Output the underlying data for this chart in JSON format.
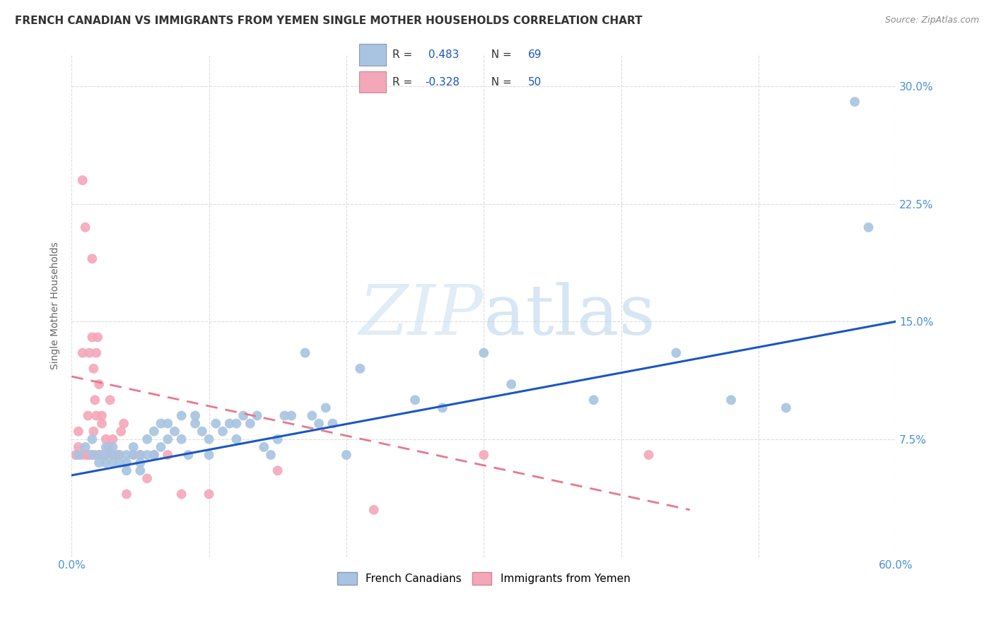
{
  "title": "FRENCH CANADIAN VS IMMIGRANTS FROM YEMEN SINGLE MOTHER HOUSEHOLDS CORRELATION CHART",
  "source": "Source: ZipAtlas.com",
  "ylabel": "Single Mother Households",
  "xlim": [
    0.0,
    0.6
  ],
  "ylim": [
    -0.02,
    0.32
  ],
  "plot_ylim": [
    0.0,
    0.32
  ],
  "xticks": [
    0.0,
    0.1,
    0.2,
    0.3,
    0.4,
    0.5,
    0.6
  ],
  "xticklabels": [
    "0.0%",
    "",
    "",
    "",
    "",
    "",
    "60.0%"
  ],
  "ytick_right_labels": [
    "",
    "7.5%",
    "15.0%",
    "22.5%",
    "30.0%"
  ],
  "ytick_right_values": [
    0.0,
    0.075,
    0.15,
    0.225,
    0.3
  ],
  "r_blue": 0.483,
  "n_blue": 69,
  "r_pink": -0.328,
  "n_pink": 50,
  "blue_color": "#a8c4e0",
  "pink_color": "#f4a7b9",
  "blue_line_color": "#1a56c4",
  "pink_line_color": "#e8788a",
  "watermark_color": "#ccddf0",
  "blue_scatter_x": [
    0.005,
    0.01,
    0.015,
    0.015,
    0.02,
    0.02,
    0.025,
    0.025,
    0.025,
    0.03,
    0.03,
    0.03,
    0.035,
    0.035,
    0.04,
    0.04,
    0.04,
    0.045,
    0.045,
    0.05,
    0.05,
    0.05,
    0.055,
    0.055,
    0.06,
    0.06,
    0.065,
    0.065,
    0.07,
    0.07,
    0.075,
    0.08,
    0.08,
    0.085,
    0.09,
    0.09,
    0.095,
    0.1,
    0.1,
    0.105,
    0.11,
    0.115,
    0.12,
    0.12,
    0.125,
    0.13,
    0.135,
    0.14,
    0.145,
    0.15,
    0.155,
    0.16,
    0.17,
    0.175,
    0.18,
    0.185,
    0.19,
    0.2,
    0.21,
    0.25,
    0.27,
    0.3,
    0.32,
    0.38,
    0.44,
    0.48,
    0.52,
    0.57,
    0.58
  ],
  "blue_scatter_y": [
    0.065,
    0.07,
    0.065,
    0.075,
    0.06,
    0.065,
    0.06,
    0.065,
    0.07,
    0.06,
    0.065,
    0.07,
    0.06,
    0.065,
    0.055,
    0.06,
    0.065,
    0.065,
    0.07,
    0.055,
    0.06,
    0.065,
    0.065,
    0.075,
    0.065,
    0.08,
    0.07,
    0.085,
    0.075,
    0.085,
    0.08,
    0.075,
    0.09,
    0.065,
    0.085,
    0.09,
    0.08,
    0.065,
    0.075,
    0.085,
    0.08,
    0.085,
    0.075,
    0.085,
    0.09,
    0.085,
    0.09,
    0.07,
    0.065,
    0.075,
    0.09,
    0.09,
    0.13,
    0.09,
    0.085,
    0.095,
    0.085,
    0.065,
    0.12,
    0.1,
    0.095,
    0.13,
    0.11,
    0.1,
    0.13,
    0.1,
    0.095,
    0.29,
    0.21
  ],
  "pink_scatter_x": [
    0.003,
    0.005,
    0.005,
    0.007,
    0.008,
    0.008,
    0.01,
    0.01,
    0.012,
    0.012,
    0.013,
    0.014,
    0.015,
    0.015,
    0.015,
    0.016,
    0.016,
    0.017,
    0.017,
    0.018,
    0.018,
    0.019,
    0.02,
    0.02,
    0.021,
    0.022,
    0.022,
    0.023,
    0.025,
    0.025,
    0.027,
    0.028,
    0.03,
    0.03,
    0.032,
    0.034,
    0.036,
    0.038,
    0.04,
    0.045,
    0.05,
    0.055,
    0.06,
    0.07,
    0.08,
    0.1,
    0.15,
    0.22,
    0.3,
    0.42
  ],
  "pink_scatter_y": [
    0.065,
    0.07,
    0.08,
    0.065,
    0.13,
    0.24,
    0.065,
    0.21,
    0.065,
    0.09,
    0.13,
    0.065,
    0.19,
    0.14,
    0.065,
    0.12,
    0.08,
    0.1,
    0.065,
    0.13,
    0.09,
    0.14,
    0.065,
    0.11,
    0.065,
    0.09,
    0.085,
    0.065,
    0.065,
    0.075,
    0.07,
    0.1,
    0.065,
    0.075,
    0.065,
    0.065,
    0.08,
    0.085,
    0.04,
    0.065,
    0.065,
    0.05,
    0.065,
    0.065,
    0.04,
    0.04,
    0.055,
    0.03,
    0.065,
    0.065
  ],
  "blue_trend_x": [
    0.0,
    0.6
  ],
  "blue_trend_y": [
    0.052,
    0.15
  ],
  "pink_trend_x": [
    0.0,
    0.45
  ],
  "pink_trend_y": [
    0.115,
    0.03
  ],
  "background_color": "#ffffff",
  "grid_color": "#dddddd",
  "title_fontsize": 11,
  "label_fontsize": 10,
  "legend_r_color": "#1a56c4",
  "legend_n_color": "#1a56c4"
}
